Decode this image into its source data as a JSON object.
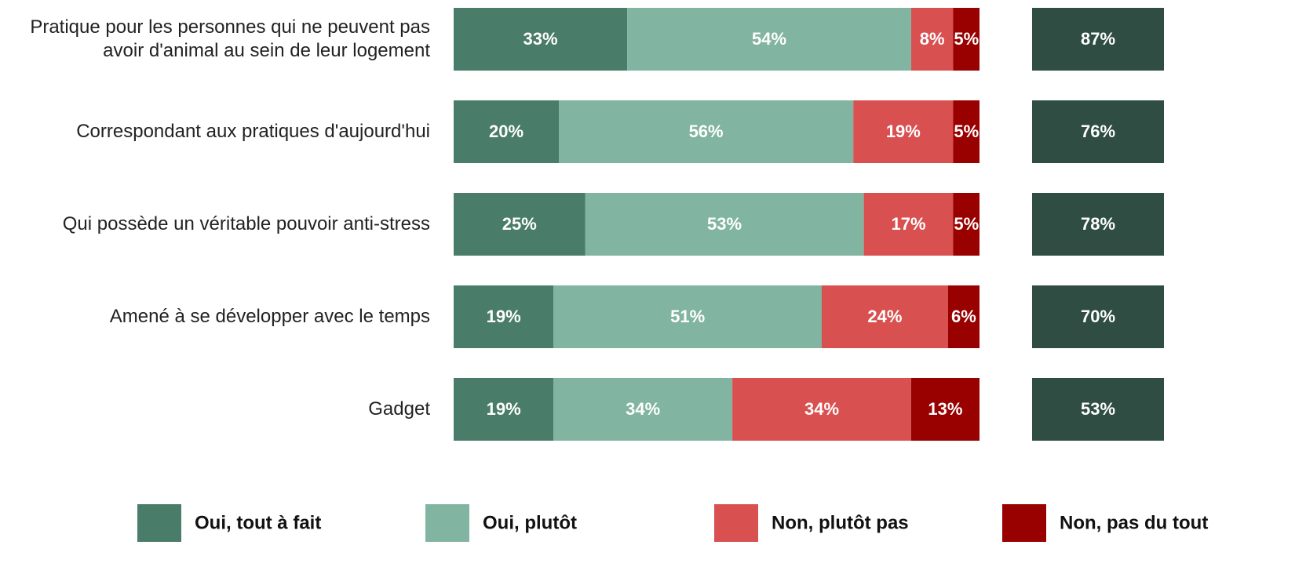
{
  "chart_data": {
    "type": "stacked_bar_horizontal",
    "categories": [
      "Pratique pour les personnes qui ne peuvent pas avoir d'animal au sein de leur logement",
      "Correspondant aux pratiques d'aujourd'hui",
      "Qui possède un véritable pouvoir anti-stress",
      "Amené à se développer avec le temps",
      "Gadget"
    ],
    "xlim": [
      0,
      100
    ],
    "series": [
      {
        "name": "Oui, tout à fait",
        "color": "#4a7c6a",
        "values": [
          33,
          20,
          25,
          19,
          19
        ],
        "value_labels": [
          "33%",
          "20%",
          "25%",
          "19%",
          "19%"
        ]
      },
      {
        "name": "Oui, plutôt",
        "color": "#82b4a2",
        "values": [
          54,
          56,
          53,
          51,
          34
        ],
        "value_labels": [
          "54%",
          "56%",
          "53%",
          "51%",
          "34%"
        ]
      },
      {
        "name": "Non, plutôt pas",
        "color": "#d95050",
        "values": [
          8,
          19,
          17,
          24,
          34
        ],
        "value_labels": [
          "8%",
          "19%",
          "17%",
          "24%",
          "34%"
        ]
      },
      {
        "name": "Non, pas du tout",
        "color": "#990000",
        "values": [
          5,
          5,
          5,
          6,
          13
        ],
        "value_labels": [
          "5%",
          "5%",
          "5%",
          "6%",
          "13%"
        ]
      }
    ],
    "totals": {
      "color": "#2f4d42",
      "values": [
        87,
        76,
        78,
        70,
        53
      ],
      "value_labels": [
        "87%",
        "76%",
        "78%",
        "70%",
        "53%"
      ]
    }
  }
}
